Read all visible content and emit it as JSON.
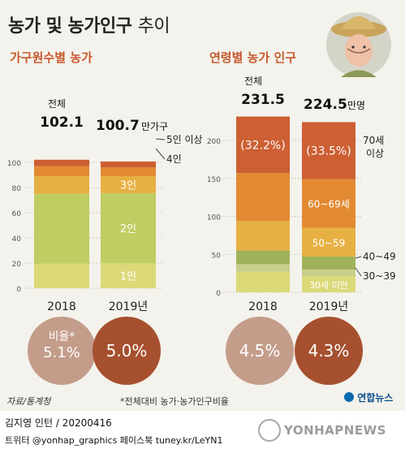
{
  "title": {
    "main": "농가 및 농가인구",
    "suffix": "추이"
  },
  "colors": {
    "c1": "#dcd979",
    "c2": "#bfcd62",
    "c3": "#e7b042",
    "c4": "#e28a32",
    "c5": "#cd5f33",
    "olive": "#9fb25a",
    "oliveLight": "#c9cf8a",
    "circleLight": "#c49c8a",
    "circleDark": "#a6502f",
    "accent": "#c65a2e"
  },
  "left": {
    "subtitle": "가구원수별 농가",
    "total_label": "전체",
    "totals": [
      "102.1",
      "100.7"
    ],
    "unit": "만가구",
    "labels": {
      "p1": "1인",
      "p2": "2인",
      "p3": "3인",
      "p4": "4인",
      "p5": "5인 이상"
    },
    "ratio_label": "비율*",
    "ratios": [
      "5.1%",
      "5.0%"
    ]
  },
  "right": {
    "subtitle": "연령별 농가 인구",
    "total_label": "전체",
    "totals": [
      "231.5",
      "224.5"
    ],
    "unit": "만명",
    "labels": {
      "a1": "30세 미만",
      "a2": "30~39",
      "a3": "40~49",
      "a4": "50~59",
      "a5": "60~69세",
      "a6": "70세 이상"
    },
    "pct_labels": [
      "(32.2%)",
      "(33.5%)"
    ],
    "ratios": [
      "4.5%",
      "4.3%"
    ]
  },
  "chart_data": [
    {
      "type": "bar",
      "title": "가구원수별 농가",
      "categories": [
        "2018",
        "2019년"
      ],
      "ylim": [
        0,
        100
      ],
      "yticks": [
        0,
        20,
        40,
        60,
        80,
        100
      ],
      "totals": [
        102.1,
        100.7
      ],
      "unit": "만가구",
      "series": [
        {
          "name": "1인",
          "values": [
            19.5,
            20.0
          ]
        },
        {
          "name": "2인",
          "values": [
            55.5,
            55.5
          ]
        },
        {
          "name": "3인",
          "values": [
            14.0,
            13.5
          ]
        },
        {
          "name": "4인",
          "values": [
            8.0,
            7.0
          ]
        },
        {
          "name": "5인 이상",
          "values": [
            5.1,
            4.7
          ]
        }
      ]
    },
    {
      "type": "bar",
      "title": "연령별 농가 인구",
      "categories": [
        "2018",
        "2019년"
      ],
      "ylim": [
        0,
        200
      ],
      "yticks": [
        0,
        50,
        100,
        150,
        200
      ],
      "totals": [
        231.5,
        224.5
      ],
      "unit": "만명",
      "series": [
        {
          "name": "30세 미만",
          "values": [
            27,
            21
          ]
        },
        {
          "name": "30~39",
          "values": [
            10,
            9
          ]
        },
        {
          "name": "40~49",
          "values": [
            18,
            17
          ]
        },
        {
          "name": "50~59",
          "values": [
            39,
            38
          ]
        },
        {
          "name": "60~69세",
          "values": [
            63,
            64
          ]
        },
        {
          "name": "70세 이상",
          "values": [
            74.5,
            75.2
          ]
        }
      ]
    }
  ],
  "footer": {
    "source": "자료/통계청",
    "note": "*전체대비 농가·농가인구비율",
    "agency": "연합뉴스",
    "byline": "김지영 인턴 / 20200416",
    "social": "트위터 @yonhap_graphics  페이스북 tuney.kr/LeYN1",
    "watermark": "YONHAPNEWS"
  }
}
